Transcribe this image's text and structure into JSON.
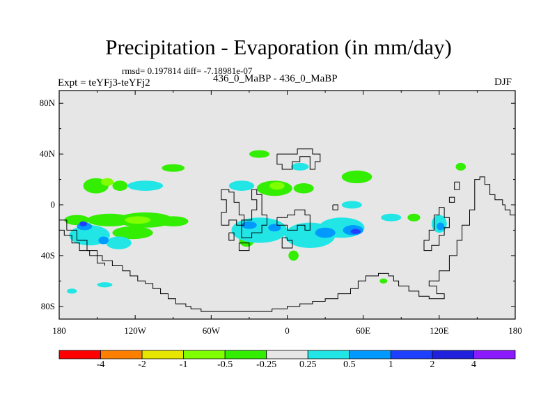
{
  "chart_data": {
    "type": "filled-contour-map",
    "title": "Precipitation - Evaporation (in mm/day)",
    "stats": "rmsd= 0.197814 diff= -7.18981e-07",
    "left_label": "Expt = teYFj3-teYFj2",
    "center_label": "436_0_MaBP - 436_0_MaBP",
    "right_label": "DJF",
    "x_ticks": [
      {
        "label": "180",
        "lon": -180
      },
      {
        "label": "120W",
        "lon": -120
      },
      {
        "label": "60W",
        "lon": -60
      },
      {
        "label": "0",
        "lon": 0
      },
      {
        "label": "60E",
        "lon": 60
      },
      {
        "label": "120E",
        "lon": 120
      },
      {
        "label": "180",
        "lon": 180
      }
    ],
    "y_ticks": [
      {
        "label": "80N",
        "lat": 80
      },
      {
        "label": "40N",
        "lat": 40
      },
      {
        "label": "0",
        "lat": 0
      },
      {
        "label": "40S",
        "lat": -40
      },
      {
        "label": "80S",
        "lat": -80
      }
    ],
    "xlim": [
      -180,
      180
    ],
    "ylim": [
      -90,
      90
    ],
    "colorbar": {
      "labels": [
        "-4",
        "-2",
        "-1",
        "-0.5",
        "-0.25",
        "0.25",
        "0.5",
        "1",
        "2",
        "4"
      ],
      "colors": [
        "#ff0000",
        "#ff8000",
        "#e6e600",
        "#80ff00",
        "#33ee00",
        "#e6e6e6",
        "#22e6e6",
        "#0099ff",
        "#1f3fff",
        "#2020dd",
        "#8c1aff"
      ]
    },
    "features": [
      {
        "level": "-0.25",
        "lon": -166,
        "lat": -12,
        "rlon": 10,
        "rlat": 4
      },
      {
        "level": "-0.25",
        "lon": -140,
        "lat": -12,
        "rlon": 18,
        "rlat": 5
      },
      {
        "level": "-0.25",
        "lon": -112,
        "lat": -12,
        "rlon": 22,
        "rlat": 6
      },
      {
        "level": "-0.25",
        "lon": -90,
        "lat": -13,
        "rlon": 12,
        "rlat": 4
      },
      {
        "level": "-0.25",
        "lon": -122,
        "lat": -22,
        "rlon": 16,
        "rlat": 5
      },
      {
        "level": "-0.25",
        "lon": -151,
        "lat": 15,
        "rlon": 10,
        "rlat": 6
      },
      {
        "level": "-0.25",
        "lon": -132,
        "lat": 15,
        "rlon": 6,
        "rlat": 4
      },
      {
        "level": "-0.25",
        "lon": -90,
        "lat": 29,
        "rlon": 9,
        "rlat": 3
      },
      {
        "level": "-0.25",
        "lon": -22,
        "lat": 40,
        "rlon": 8,
        "rlat": 3
      },
      {
        "level": "-0.25",
        "lon": -10,
        "lat": 13,
        "rlon": 14,
        "rlat": 6
      },
      {
        "level": "-0.25",
        "lon": 13,
        "lat": 13,
        "rlon": 8,
        "rlat": 4
      },
      {
        "level": "-0.25",
        "lon": -32,
        "lat": -28,
        "rlon": 6,
        "rlat": 5
      },
      {
        "level": "-0.25",
        "lon": 5,
        "lat": -40,
        "rlon": 4,
        "rlat": 4
      },
      {
        "level": "-0.25",
        "lon": 12,
        "lat": -23,
        "rlon": 14,
        "rlat": 6
      },
      {
        "level": "-0.25",
        "lon": 55,
        "lat": 22,
        "rlon": 12,
        "rlat": 5
      },
      {
        "level": "-0.25",
        "lon": 137,
        "lat": 30,
        "rlon": 4,
        "rlat": 3
      },
      {
        "level": "-0.25",
        "lon": 100,
        "lat": -10,
        "rlon": 5,
        "rlat": 3
      },
      {
        "level": "-0.25",
        "lon": 76,
        "lat": -60,
        "rlon": 3,
        "rlat": 2
      },
      {
        "level": "-0.5",
        "lon": -142,
        "lat": 18,
        "rlon": 5,
        "rlat": 3
      },
      {
        "level": "-0.5",
        "lon": -118,
        "lat": -12,
        "rlon": 10,
        "rlat": 3
      },
      {
        "level": "-0.5",
        "lon": -8,
        "lat": 15,
        "rlon": 6,
        "rlat": 3
      },
      {
        "level": "-0.5",
        "lon": 20,
        "lat": -20,
        "rlon": 6,
        "rlat": 3
      },
      {
        "level": "0.25",
        "lon": -156,
        "lat": -24,
        "rlon": 16,
        "rlat": 8
      },
      {
        "level": "0.25",
        "lon": -133,
        "lat": -30,
        "rlon": 10,
        "rlat": 5
      },
      {
        "level": "0.25",
        "lon": -112,
        "lat": 15,
        "rlon": 14,
        "rlat": 4
      },
      {
        "level": "0.25",
        "lon": -36,
        "lat": 15,
        "rlon": 10,
        "rlat": 4
      },
      {
        "level": "0.25",
        "lon": -22,
        "lat": -20,
        "rlon": 22,
        "rlat": 10
      },
      {
        "level": "0.25",
        "lon": 18,
        "lat": -24,
        "rlon": 20,
        "rlat": 10
      },
      {
        "level": "0.25",
        "lon": 43,
        "lat": -18,
        "rlon": 18,
        "rlat": 8
      },
      {
        "level": "0.25",
        "lon": 51,
        "lat": 0,
        "rlon": 8,
        "rlat": 3
      },
      {
        "level": "0.25",
        "lon": 82,
        "lat": -10,
        "rlon": 8,
        "rlat": 3
      },
      {
        "level": "0.25",
        "lon": -144,
        "lat": -63,
        "rlon": 6,
        "rlat": 2
      },
      {
        "level": "0.25",
        "lon": -170,
        "lat": -68,
        "rlon": 4,
        "rlat": 2
      },
      {
        "level": "0.25",
        "lon": 10,
        "lat": 30,
        "rlon": 7,
        "rlat": 3
      },
      {
        "level": "0.25",
        "lon": 120,
        "lat": -15,
        "rlon": 6,
        "rlat": 7
      },
      {
        "level": "0.5",
        "lon": -160,
        "lat": -17,
        "rlon": 6,
        "rlat": 3
      },
      {
        "level": "0.5",
        "lon": -145,
        "lat": -28,
        "rlon": 4,
        "rlat": 3
      },
      {
        "level": "0.5",
        "lon": -30,
        "lat": -16,
        "rlon": 6,
        "rlat": 3
      },
      {
        "level": "0.5",
        "lon": -10,
        "lat": -18,
        "rlon": 5,
        "rlat": 3
      },
      {
        "level": "0.5",
        "lon": 30,
        "lat": -22,
        "rlon": 8,
        "rlat": 4
      },
      {
        "level": "0.5",
        "lon": 52,
        "lat": -20,
        "rlon": 8,
        "rlat": 4
      },
      {
        "level": "0.5",
        "lon": 121,
        "lat": -17,
        "rlon": 3,
        "rlat": 3
      },
      {
        "level": "1",
        "lon": 54,
        "lat": -21,
        "rlon": 4,
        "rlat": 2
      },
      {
        "level": "1",
        "lon": -161,
        "lat": -15,
        "rlon": 3,
        "rlat": 2
      }
    ],
    "coastlines": [
      [
        [
          -180,
          -12
        ],
        [
          -174,
          -12
        ],
        [
          -174,
          -20
        ],
        [
          -166,
          -20
        ],
        [
          -166,
          -28
        ],
        [
          -158,
          -28
        ],
        [
          -158,
          -36
        ],
        [
          -150,
          -36
        ],
        [
          -150,
          -40
        ],
        [
          -146,
          -40
        ],
        [
          -146,
          -44
        ],
        [
          -138,
          -44
        ],
        [
          -138,
          -48
        ],
        [
          -130,
          -48
        ],
        [
          -130,
          -52
        ],
        [
          -124,
          -52
        ],
        [
          -124,
          -56
        ],
        [
          -118,
          -56
        ],
        [
          -118,
          -60
        ],
        [
          -112,
          -60
        ],
        [
          -112,
          -62
        ],
        [
          -106,
          -62
        ],
        [
          -106,
          -66
        ],
        [
          -100,
          -66
        ],
        [
          -100,
          -70
        ],
        [
          -94,
          -70
        ],
        [
          -94,
          -74
        ],
        [
          -88,
          -74
        ],
        [
          -88,
          -78
        ],
        [
          -80,
          -78
        ],
        [
          -80,
          -80
        ],
        [
          -76,
          -80
        ],
        [
          -76,
          -82
        ],
        [
          -68,
          -82
        ],
        [
          -68,
          -84
        ],
        [
          -50,
          -84
        ],
        [
          -30,
          -84
        ],
        [
          -12,
          -84
        ],
        [
          -12,
          -82
        ],
        [
          0,
          -82
        ],
        [
          0,
          -80
        ],
        [
          10,
          -80
        ],
        [
          10,
          -78
        ],
        [
          20,
          -78
        ],
        [
          20,
          -76
        ],
        [
          30,
          -76
        ],
        [
          30,
          -74
        ],
        [
          40,
          -74
        ],
        [
          40,
          -70
        ],
        [
          50,
          -70
        ],
        [
          50,
          -66
        ],
        [
          56,
          -66
        ],
        [
          56,
          -60
        ],
        [
          62,
          -60
        ],
        [
          62,
          -56
        ],
        [
          72,
          -56
        ],
        [
          72,
          -54
        ],
        [
          80,
          -54
        ],
        [
          80,
          -56
        ],
        [
          84,
          -56
        ],
        [
          84,
          -60
        ],
        [
          88,
          -60
        ],
        [
          88,
          -64
        ],
        [
          96,
          -64
        ],
        [
          96,
          -68
        ],
        [
          104,
          -68
        ],
        [
          104,
          -72
        ],
        [
          112,
          -72
        ],
        [
          112,
          -74
        ],
        [
          124,
          -74
        ],
        [
          124,
          -70
        ],
        [
          118,
          -70
        ],
        [
          118,
          -64
        ],
        [
          112,
          -64
        ],
        [
          112,
          -60
        ],
        [
          120,
          -60
        ],
        [
          120,
          -52
        ],
        [
          128,
          -52
        ],
        [
          128,
          -40
        ],
        [
          134,
          -40
        ],
        [
          134,
          -28
        ],
        [
          138,
          -28
        ],
        [
          138,
          -16
        ],
        [
          144,
          -16
        ],
        [
          144,
          -4
        ],
        [
          148,
          -4
        ],
        [
          148,
          20
        ],
        [
          152,
          20
        ],
        [
          152,
          22
        ],
        [
          156,
          22
        ],
        [
          156,
          16
        ],
        [
          160,
          16
        ],
        [
          160,
          8
        ],
        [
          164,
          8
        ],
        [
          164,
          4
        ],
        [
          170,
          4
        ],
        [
          170,
          0
        ],
        [
          172,
          0
        ],
        [
          172,
          -4
        ],
        [
          176,
          -4
        ],
        [
          176,
          -8
        ],
        [
          180,
          -8
        ]
      ],
      [
        [
          -180,
          -20
        ],
        [
          -176,
          -20
        ],
        [
          -176,
          -24
        ],
        [
          -170,
          -24
        ],
        [
          -170,
          -30
        ],
        [
          -164,
          -30
        ],
        [
          -164,
          -36
        ],
        [
          -156,
          -36
        ],
        [
          -156,
          -40
        ],
        [
          -150,
          -40
        ],
        [
          -150,
          -46
        ],
        [
          -144,
          -46
        ],
        [
          -144,
          -48
        ]
      ],
      [
        [
          -52,
          -16
        ],
        [
          -52,
          -6
        ],
        [
          -48,
          -6
        ],
        [
          -48,
          4
        ],
        [
          -52,
          4
        ],
        [
          -52,
          12
        ],
        [
          -46,
          12
        ],
        [
          -46,
          10
        ],
        [
          -42,
          10
        ],
        [
          -42,
          2
        ],
        [
          -38,
          2
        ],
        [
          -38,
          -8
        ],
        [
          -34,
          -8
        ],
        [
          -34,
          -16
        ],
        [
          -40,
          -16
        ],
        [
          -40,
          -12
        ],
        [
          -46,
          -12
        ],
        [
          -46,
          -16
        ],
        [
          -52,
          -16
        ]
      ],
      [
        [
          -36,
          -22
        ],
        [
          -36,
          -12
        ],
        [
          -28,
          -12
        ],
        [
          -28,
          -4
        ],
        [
          -24,
          -4
        ],
        [
          -24,
          4
        ],
        [
          -28,
          4
        ],
        [
          -28,
          12
        ],
        [
          -24,
          12
        ],
        [
          -24,
          8
        ],
        [
          -20,
          8
        ],
        [
          -20,
          -8
        ],
        [
          -16,
          -8
        ],
        [
          -16,
          -16
        ],
        [
          -20,
          -16
        ],
        [
          -20,
          -22
        ],
        [
          -28,
          -22
        ],
        [
          -28,
          -26
        ],
        [
          -36,
          -26
        ],
        [
          -36,
          -22
        ]
      ],
      [
        [
          -38,
          -30
        ],
        [
          -38,
          -36
        ],
        [
          -30,
          -36
        ],
        [
          -30,
          -30
        ],
        [
          -38,
          -30
        ]
      ],
      [
        [
          -46,
          -22
        ],
        [
          -46,
          -28
        ],
        [
          -42,
          -28
        ],
        [
          -42,
          -22
        ],
        [
          -46,
          -22
        ]
      ],
      [
        [
          -8,
          40
        ],
        [
          -8,
          32
        ],
        [
          -4,
          32
        ],
        [
          -4,
          28
        ],
        [
          4,
          28
        ],
        [
          4,
          34
        ],
        [
          10,
          34
        ],
        [
          10,
          38
        ],
        [
          18,
          38
        ],
        [
          18,
          28
        ],
        [
          22,
          28
        ],
        [
          22,
          34
        ],
        [
          26,
          34
        ],
        [
          26,
          40
        ],
        [
          20,
          40
        ],
        [
          20,
          44
        ],
        [
          8,
          44
        ],
        [
          8,
          40
        ],
        [
          -8,
          40
        ]
      ],
      [
        [
          -8,
          -10
        ],
        [
          -8,
          -16
        ],
        [
          0,
          -16
        ],
        [
          0,
          -20
        ],
        [
          8,
          -20
        ],
        [
          8,
          -16
        ],
        [
          14,
          -16
        ],
        [
          14,
          -20
        ],
        [
          18,
          -20
        ],
        [
          18,
          -8
        ],
        [
          14,
          -8
        ],
        [
          14,
          -4
        ],
        [
          6,
          -4
        ],
        [
          6,
          -8
        ],
        [
          0,
          -8
        ],
        [
          0,
          -10
        ],
        [
          -8,
          -10
        ]
      ],
      [
        [
          -4,
          -26
        ],
        [
          -4,
          -34
        ],
        [
          4,
          -34
        ],
        [
          4,
          -28
        ],
        [
          0,
          -28
        ],
        [
          0,
          -26
        ],
        [
          -4,
          -26
        ]
      ],
      [
        [
          36,
          0
        ],
        [
          36,
          -4
        ],
        [
          40,
          -4
        ],
        [
          40,
          0
        ],
        [
          36,
          0
        ]
      ],
      [
        [
          124,
          -2
        ],
        [
          124,
          -10
        ],
        [
          128,
          -10
        ],
        [
          128,
          -18
        ],
        [
          124,
          -18
        ],
        [
          124,
          -24
        ],
        [
          120,
          -24
        ],
        [
          120,
          -32
        ],
        [
          114,
          -32
        ],
        [
          114,
          -36
        ],
        [
          108,
          -36
        ],
        [
          108,
          -28
        ],
        [
          112,
          -28
        ],
        [
          112,
          -20
        ],
        [
          116,
          -20
        ],
        [
          116,
          -8
        ],
        [
          120,
          -8
        ],
        [
          120,
          -2
        ],
        [
          124,
          -2
        ]
      ],
      [
        [
          128,
          6
        ],
        [
          128,
          2
        ],
        [
          132,
          2
        ],
        [
          132,
          6
        ],
        [
          128,
          6
        ]
      ],
      [
        [
          132,
          18
        ],
        [
          132,
          12
        ],
        [
          136,
          12
        ],
        [
          136,
          18
        ],
        [
          132,
          18
        ]
      ]
    ]
  }
}
